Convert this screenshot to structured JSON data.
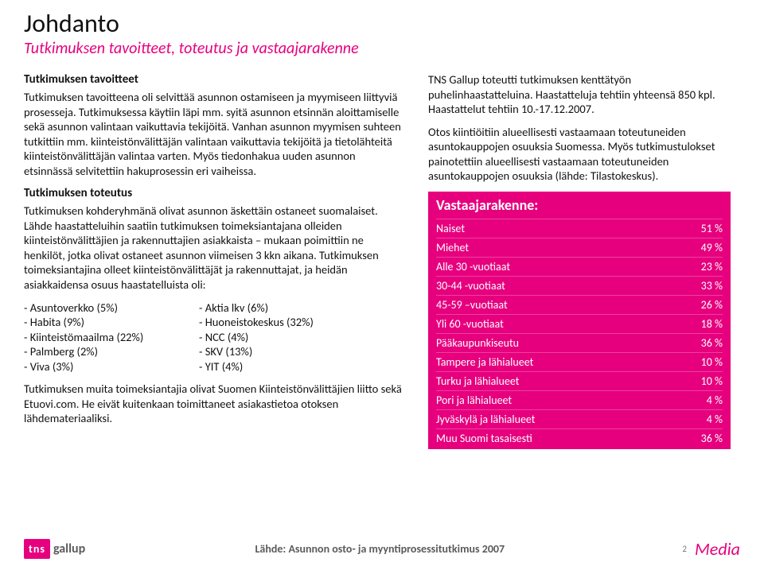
{
  "title": "Johdanto",
  "subtitle": "Tutkimuksen tavoitteet, toteutus ja vastaajarakenne",
  "left": {
    "h1": "Tutkimuksen tavoitteet",
    "p1": "Tutkimuksen tavoitteena oli selvittää asunnon ostamiseen ja myymiseen liittyviä prosesseja. Tutkimuksessa käytiin läpi mm. syitä asunnon etsinnän aloittamiselle sekä asunnon valintaan vaikuttavia tekijöitä. Vanhan asunnon myymisen suhteen tutkittiin mm. kiinteistönvälittäjän valintaan vaikuttavia tekijöitä ja tietolähteitä kiinteistönvälittäjän valintaa varten. Myös tiedonhakua uuden asunnon etsinnässä selvitettiin hakuprosessin eri vaiheissa.",
    "h2": "Tutkimuksen toteutus",
    "p2": "Tutkimuksen kohderyhmänä olivat asunnon äskettäin ostaneet suomalaiset. Lähde haastatteluihin saatiin tutkimuksen toimeksiantajana olleiden kiinteistönvälittäjien ja rakennuttajien asiakkaista – mukaan poimittiin ne henkilöt, jotka olivat ostaneet asunnon viimeisen 3 kkn aikana. Tutkimuksen toimeksiantajina olleet kiinteistönvälittäjät ja rakennuttajat, ja heidän asiakkaidensa osuus haastatelluista oli:",
    "listA": [
      "- Asuntoverkko (5%)",
      "- Habita (9%)",
      "- Kiinteistömaailma (22%)",
      "- Palmberg (2%)",
      "- Viva (3%)"
    ],
    "listB": [
      "- Aktia lkv (6%)",
      "- Huoneistokeskus (32%)",
      "- NCC (4%)",
      "- SKV (13%)",
      "- YIT (4%)"
    ],
    "p3": "Tutkimuksen muita toimeksiantajia olivat Suomen Kiinteistönvälittäjien liitto sekä Etuovi.com. He eivät kuitenkaan toimittaneet asiakastietoa otoksen lähdemateriaaliksi."
  },
  "right": {
    "p1": "TNS Gallup toteutti tutkimuksen kenttätyön puhelinhaastatteluina. Haastatteluja tehtiin yhteensä 850 kpl. Haastattelut tehtiin 10.-17.12.2007.",
    "p2": "Otos kiintiöitiin alueellisesti vastaamaan toteutuneiden asuntokauppojen osuuksia Suomessa. Myös tutkimustulokset painotettiin alueellisesti vastaamaan toteutuneiden asuntokauppojen osuuksia (lähde: Tilastokeskus).",
    "table_title": "Vastaajarakenne:",
    "rows": [
      {
        "label": "Naiset",
        "value": "51 %"
      },
      {
        "label": "Miehet",
        "value": "49 %"
      },
      {
        "label": "Alle 30 -vuotiaat",
        "value": "23 %"
      },
      {
        "label": "30-44 -vuotiaat",
        "value": "33 %"
      },
      {
        "label": "45-59 –vuotiaat",
        "value": "26 %"
      },
      {
        "label": "Yli 60 -vuotiaat",
        "value": "18 %"
      },
      {
        "label": "Pääkaupunkiseutu",
        "value": "36 %"
      },
      {
        "label": "Tampere ja lähialueet",
        "value": "10 %"
      },
      {
        "label": "Turku ja lähialueet",
        "value": "10 %"
      },
      {
        "label": "Pori ja lähialueet",
        "value": "4 %"
      },
      {
        "label": "Jyväskylä ja lähialueet",
        "value": "4 %"
      },
      {
        "label": "Muu Suomi tasaisesti",
        "value": "36 %"
      }
    ]
  },
  "footer": {
    "logo_box": "tns",
    "logo_text": "gallup",
    "source": "Lähde: Asunnon osto- ja myyntiprosessitutkimus 2007",
    "page": "2",
    "media": "Media"
  },
  "colors": {
    "accent": "#e6007e",
    "text": "#111111",
    "grey": "#5b5b5b"
  }
}
